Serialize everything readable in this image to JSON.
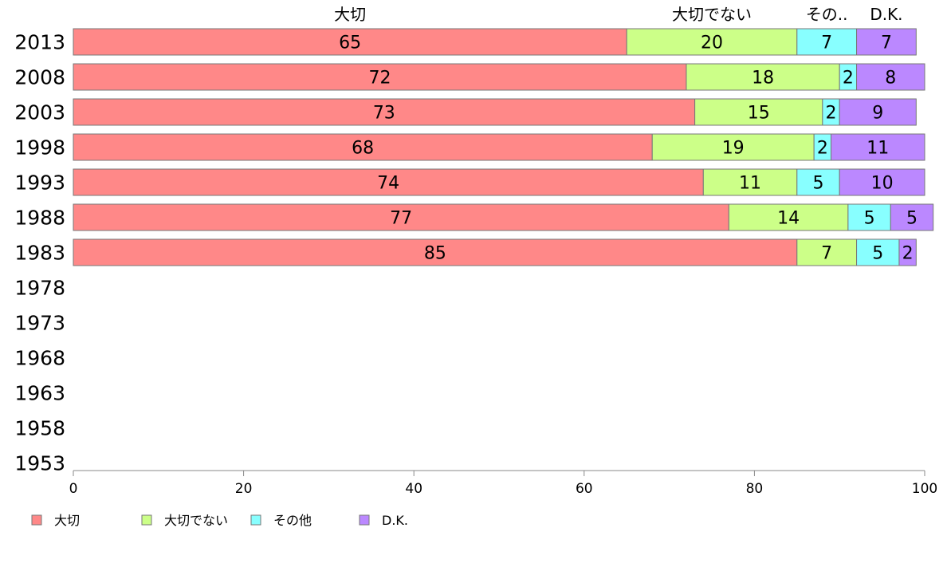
{
  "chart_data": {
    "type": "bar",
    "orientation": "horizontal",
    "stacked": true,
    "categories": [
      "2013",
      "2008",
      "2003",
      "1998",
      "1993",
      "1988",
      "1983",
      "1978",
      "1973",
      "1968",
      "1963",
      "1958",
      "1953"
    ],
    "series": [
      {
        "name": "大切",
        "color": "#ff8888",
        "values": [
          65,
          72,
          73,
          68,
          74,
          77,
          85,
          null,
          null,
          null,
          null,
          null,
          null
        ]
      },
      {
        "name": "大切でない",
        "color": "#ccff88",
        "values": [
          20,
          18,
          15,
          19,
          11,
          14,
          7,
          null,
          null,
          null,
          null,
          null,
          null
        ]
      },
      {
        "name": "その他",
        "color": "#88ffff",
        "values": [
          7,
          2,
          2,
          2,
          5,
          5,
          5,
          null,
          null,
          null,
          null,
          null,
          null
        ]
      },
      {
        "name": "D.K.",
        "color": "#bb88ff",
        "values": [
          7,
          8,
          9,
          11,
          10,
          5,
          2,
          null,
          null,
          null,
          null,
          null,
          null
        ]
      }
    ],
    "top_labels": [
      "大切",
      "大切でない",
      "その..",
      "D.K."
    ],
    "xlim": [
      0,
      100
    ],
    "xticks": [
      "0",
      "20",
      "40",
      "60",
      "80",
      "100"
    ],
    "grid": false,
    "legend_position": "bottom-left"
  }
}
